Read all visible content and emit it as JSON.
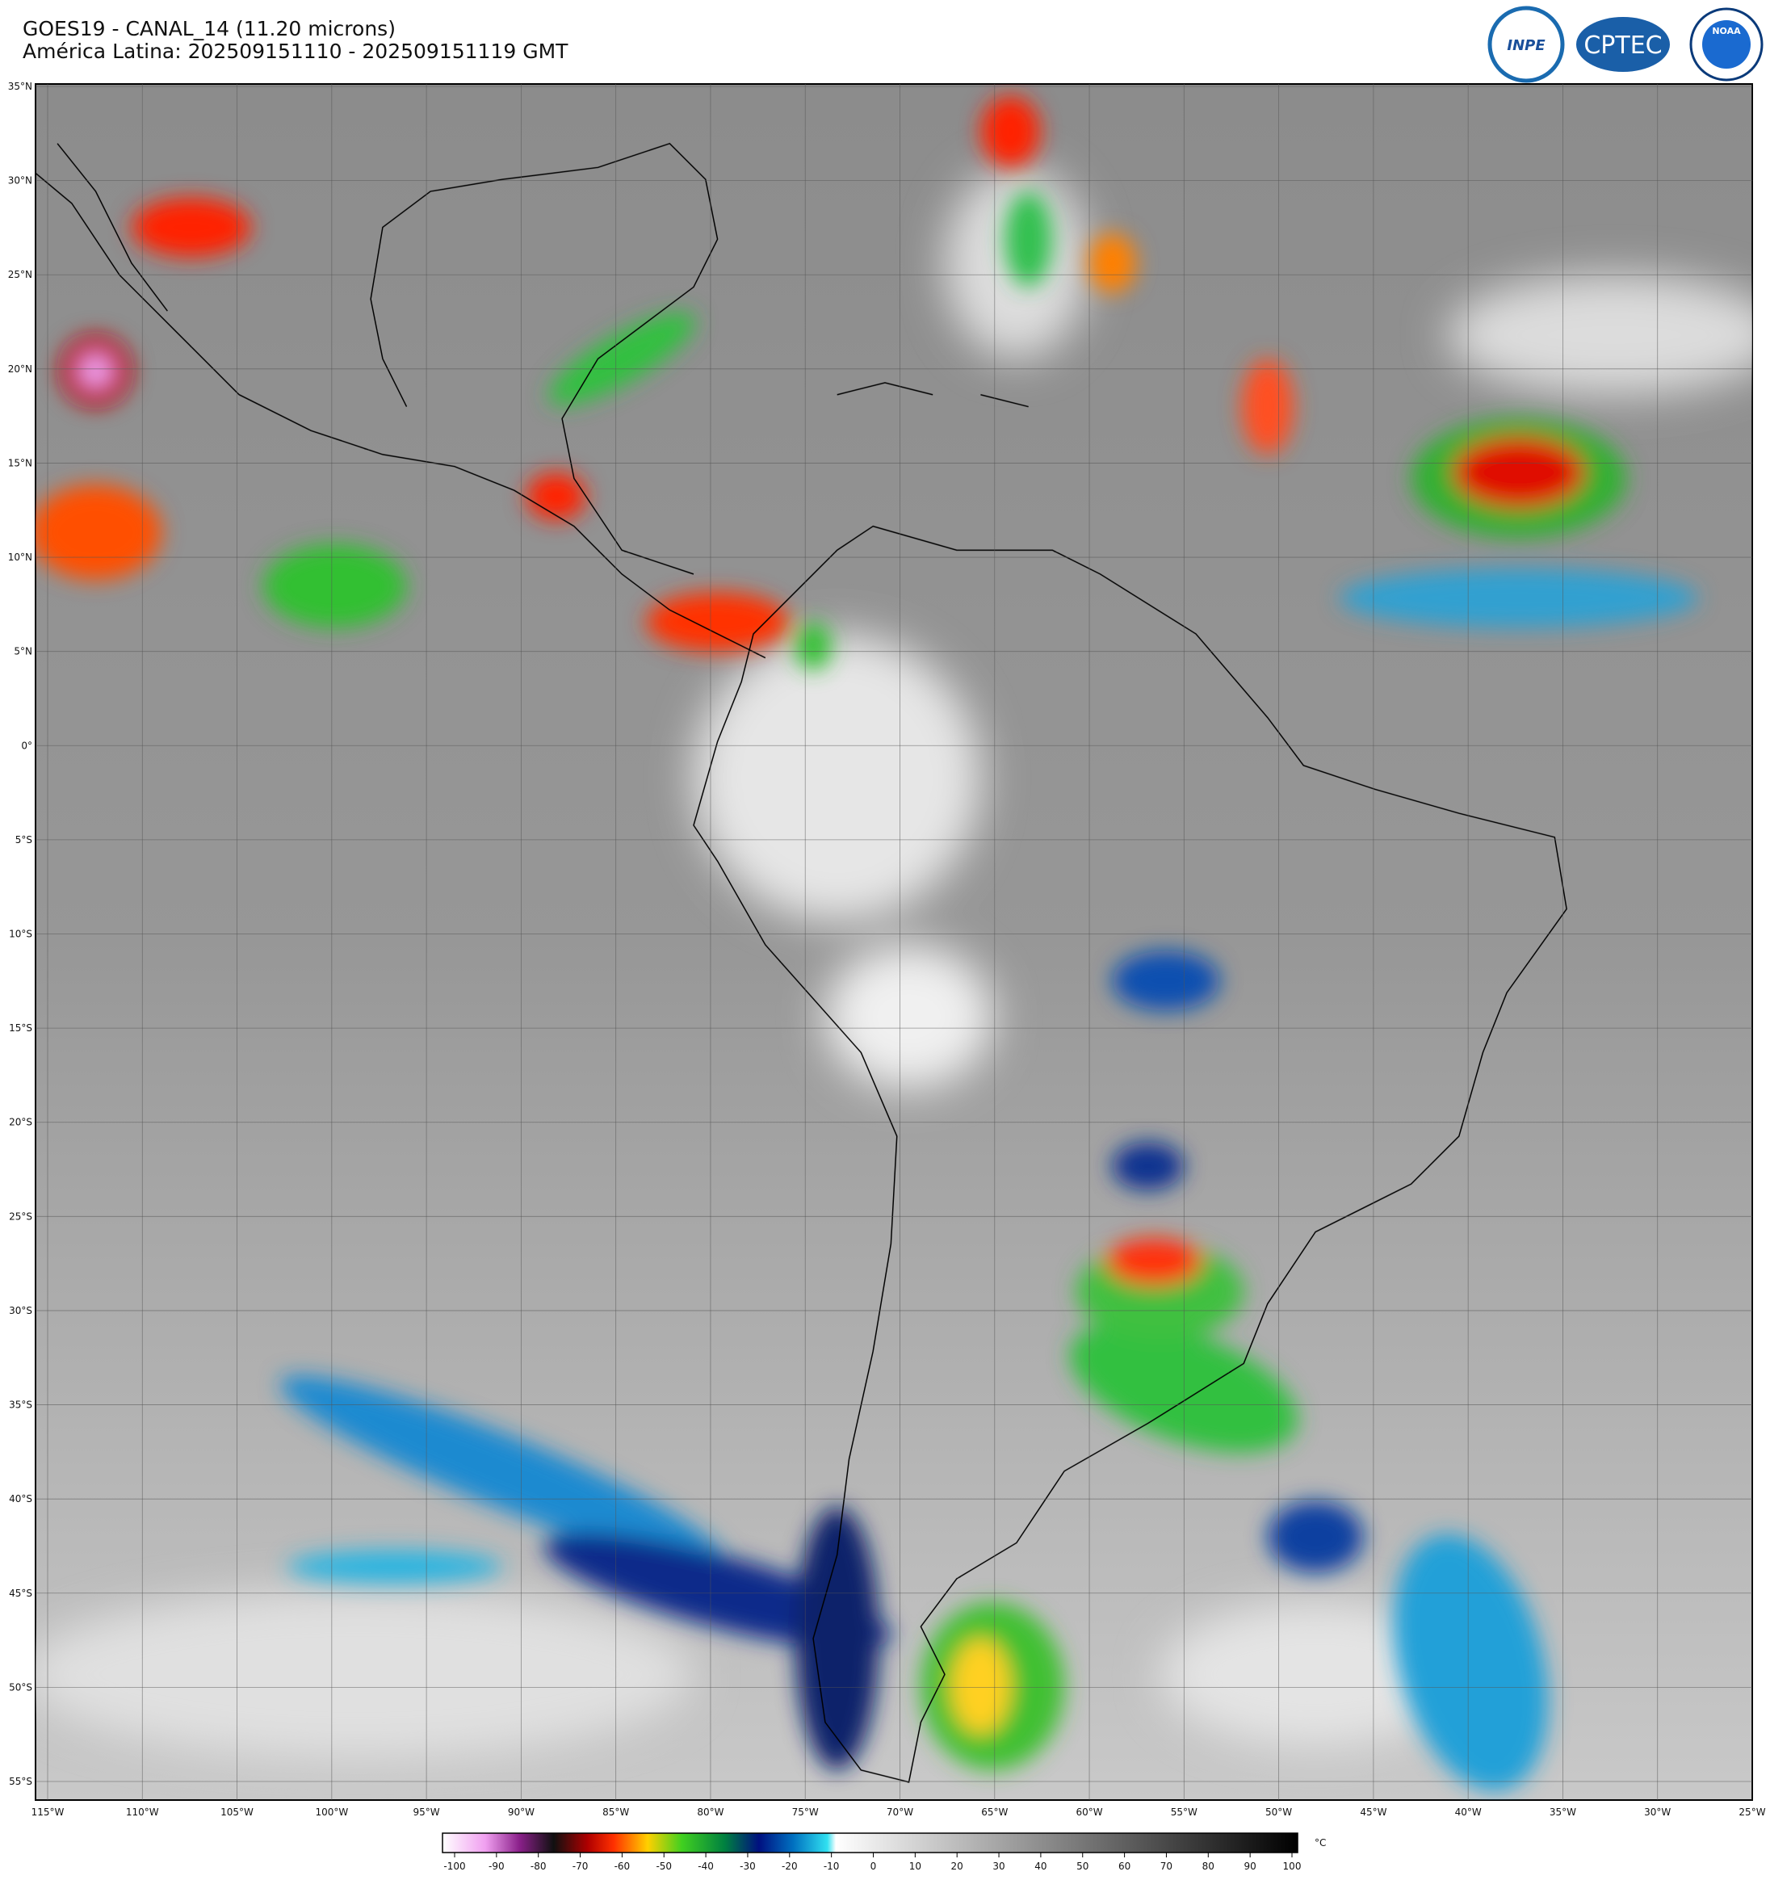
{
  "header": {
    "title": "GOES19 - CANAL_14 (11.20 microns)",
    "subtitle": "América Latina: 202509151110 - 202509151119 GMT"
  },
  "logos": [
    "INPE",
    "CPTEC",
    "NOAA"
  ],
  "lat_labels": [
    "35°N",
    "30°N",
    "25°N",
    "20°N",
    "15°N",
    "10°N",
    "5°N",
    "0°",
    "5°S",
    "10°S",
    "15°S",
    "20°S",
    "25°S",
    "30°S",
    "35°S",
    "40°S",
    "45°S",
    "50°S",
    "55°S"
  ],
  "lon_labels": [
    "115°W",
    "110°W",
    "105°W",
    "100°W",
    "95°W",
    "90°W",
    "85°W",
    "80°W",
    "75°W",
    "70°W",
    "65°W",
    "60°W",
    "55°W",
    "50°W",
    "45°W",
    "40°W",
    "35°W",
    "30°W",
    "25°W"
  ],
  "colorbar": {
    "ticks": [
      -100,
      -90,
      -80,
      -70,
      -60,
      -50,
      -40,
      -30,
      -20,
      -10,
      0,
      10,
      20,
      30,
      40,
      50,
      60,
      70,
      80,
      90,
      100
    ],
    "unit": "°C"
  }
}
